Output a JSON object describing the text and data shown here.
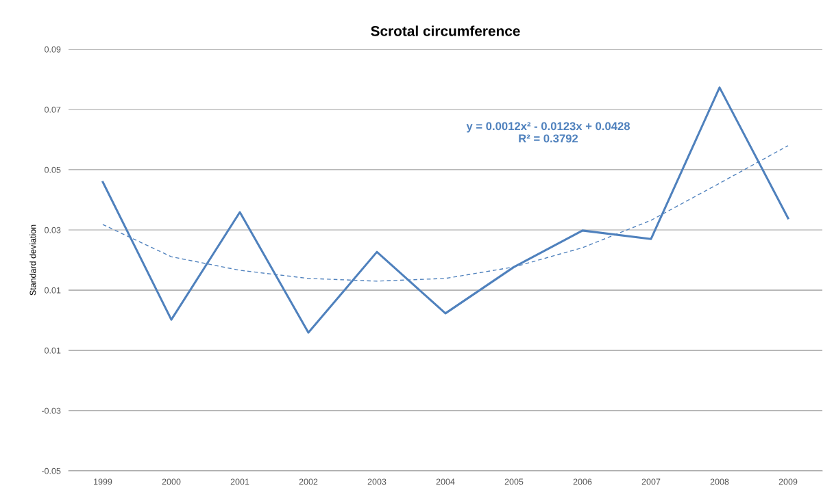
{
  "chart_data": {
    "type": "line",
    "title": "Scrotal circumference",
    "ylabel": "Standard deviation",
    "categories": [
      "1999",
      "2000",
      "2001",
      "2002",
      "2003",
      "2004",
      "2005",
      "2006",
      "2007",
      "2008",
      "2009"
    ],
    "series": [
      {
        "color": "#4f81bd",
        "values": [
          0.0459,
          0.0002,
          0.0359,
          -0.0041,
          0.0227,
          0.0023,
          0.0177,
          0.0298,
          0.027,
          0.0773,
          0.0339
        ],
        "line_style": "solid"
      },
      {
        "type": "line",
        "color": "#4f81bd",
        "values": [
          0.0318,
          0.0211,
          0.0166,
          0.0139,
          0.013,
          0.0139,
          0.0177,
          0.0241,
          0.0332,
          0.0455,
          0.058
        ],
        "line_style": "dashed"
      }
    ],
    "ylim": [
      -0.05,
      0.09
    ],
    "yticks": [
      -0.05,
      -0.03,
      {
        "value": -0.01,
        "label": "0.01"
      },
      0.01,
      0.03,
      0.05,
      0.07,
      0.09
    ],
    "grid": "y",
    "marker": "none",
    "annotations": [
      "y = 0.0012x² - 0.0123x + 0.0428\nR² = 0.3792"
    ]
  }
}
